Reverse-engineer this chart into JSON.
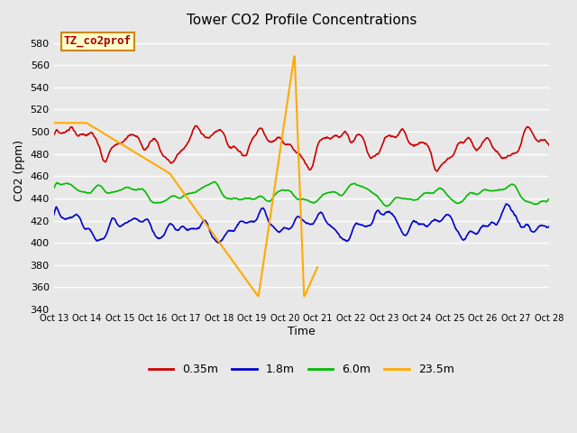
{
  "title": "Tower CO2 Profile Concentrations",
  "xlabel": "Time",
  "ylabel": "CO2 (ppm)",
  "ylim": [
    340,
    590
  ],
  "yticks": [
    340,
    360,
    380,
    400,
    420,
    440,
    460,
    480,
    500,
    520,
    540,
    560,
    580
  ],
  "plot_bg_color": "#e8e8e8",
  "fig_bg_color": "#e8e8e8",
  "series_colors": {
    "0.35m": "#cc0000",
    "1.8m": "#0000cc",
    "6.0m": "#00bb00",
    "23.5m": "#ffaa00"
  },
  "series_lw": {
    "0.35m": 1.2,
    "1.8m": 1.2,
    "6.0m": 1.2,
    "23.5m": 1.5
  },
  "annotation_text": "TZ_co2prof",
  "annotation_color": "#aa0000",
  "annotation_bg": "#ffffcc",
  "annotation_border": "#cc8800",
  "legend_labels": [
    "0.35m",
    "1.8m",
    "6.0m",
    "23.5m"
  ],
  "legend_colors": [
    "#cc0000",
    "#0000cc",
    "#00bb00",
    "#ffaa00"
  ],
  "xtick_labels": [
    "Oct 13",
    "Oct 14",
    "Oct 15",
    "Oct 16",
    "Oct 17",
    "Oct 18",
    "Oct 19",
    "Oct 20",
    "Oct 21",
    "Oct 22",
    "Oct 23",
    "Oct 24",
    "Oct 25",
    "Oct 26",
    "Oct 27",
    "Oct 28"
  ],
  "grid_color": "#ffffff",
  "num_points": 1000
}
